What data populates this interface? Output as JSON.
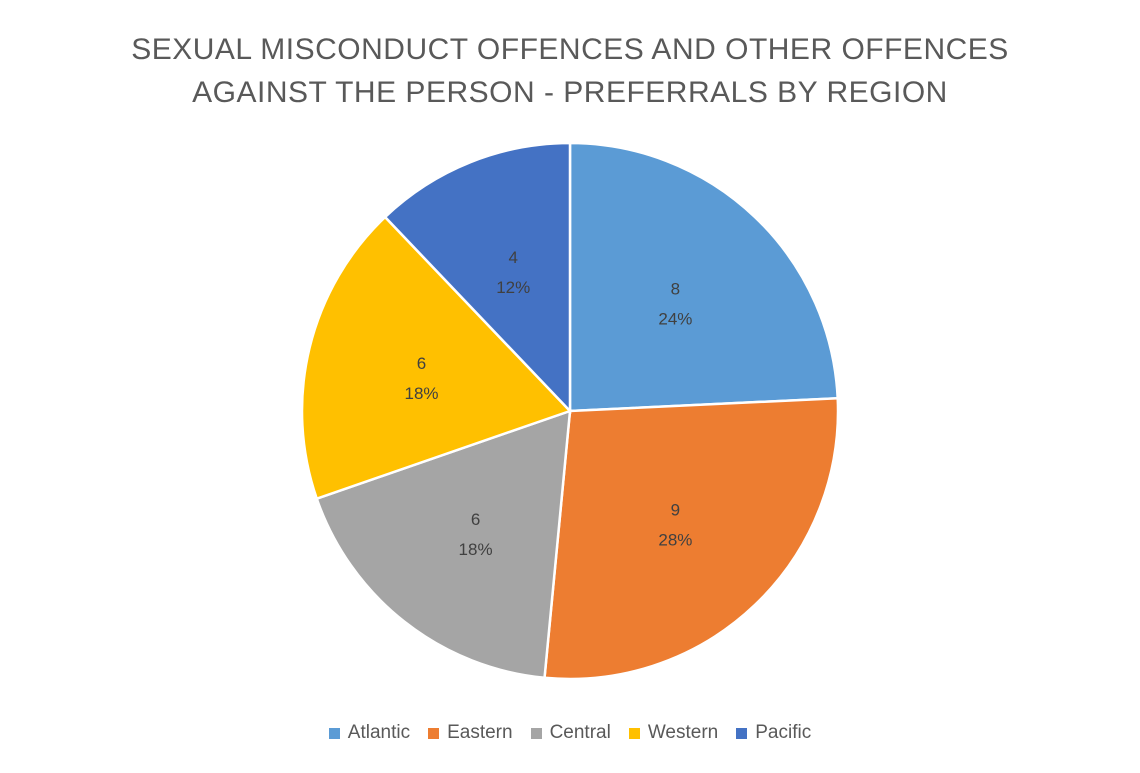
{
  "chart_data": {
    "type": "pie",
    "title_lines": [
      "SEXUAL MISCONDUCT OFFENCES AND OTHER OFFENCES",
      "AGAINST THE PERSON - PREFERRALS BY REGION"
    ],
    "legend_position": "bottom",
    "slices": [
      {
        "name": "Atlantic",
        "value": 8,
        "percent": "24%",
        "color": "#5B9BD5"
      },
      {
        "name": "Eastern",
        "value": 9,
        "percent": "28%",
        "color": "#ED7D31"
      },
      {
        "name": "Central",
        "value": 6,
        "percent": "18%",
        "color": "#A5A5A5"
      },
      {
        "name": "Western",
        "value": 6,
        "percent": "18%",
        "color": "#FFC000"
      },
      {
        "name": "Pacific",
        "value": 4,
        "percent": "12%",
        "color": "#4472C4"
      }
    ]
  }
}
